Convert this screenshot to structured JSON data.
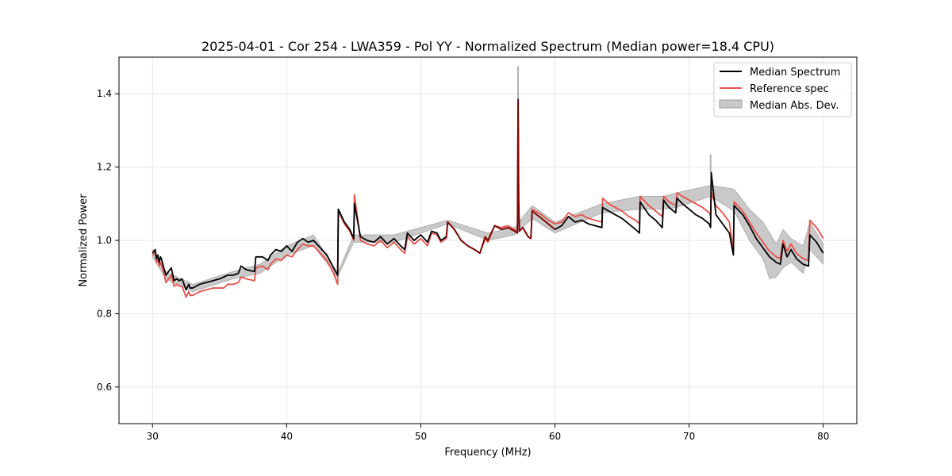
{
  "chart_data": {
    "type": "line",
    "title": "2025-04-01 - Cor 254 - LWA359 - Pol YY - Normalized Spectrum (Median power=18.4 CPU)",
    "xlabel": "Frequency (MHz)",
    "ylabel": "Normalized Power",
    "xlim": [
      27.5,
      82.5
    ],
    "ylim": [
      0.5,
      1.5
    ],
    "xticks": [
      30,
      40,
      50,
      60,
      70,
      80
    ],
    "yticks": [
      0.6,
      0.8,
      1.0,
      1.2,
      1.4
    ],
    "xtick_labels": [
      "30",
      "40",
      "50",
      "60",
      "70",
      "80"
    ],
    "ytick_labels": [
      "0.6",
      "0.8",
      "1.0",
      "1.2",
      "1.4"
    ],
    "grid": true,
    "legend_position": "top-right",
    "legend": [
      "Median Spectrum",
      "Reference spec",
      "Median Abs. Dev."
    ],
    "colors": {
      "median": "#000000",
      "reference": "#e8504a",
      "mad": "#bfbfbf"
    },
    "series": [
      {
        "name": "Median Spectrum",
        "x": [
          30.0,
          30.2,
          30.3,
          30.4,
          30.5,
          30.6,
          30.7,
          30.8,
          31.0,
          31.2,
          31.4,
          31.6,
          31.8,
          32.0,
          32.2,
          32.5,
          32.7,
          32.8,
          33.0,
          33.5,
          34.0,
          34.5,
          35.0,
          35.3,
          35.6,
          36.0,
          36.4,
          36.6,
          37.0,
          37.6,
          37.7,
          38.2,
          38.6,
          38.8,
          39.2,
          39.6,
          40.0,
          40.4,
          40.8,
          41.2,
          41.6,
          42.0,
          42.5,
          43.0,
          43.5,
          43.8,
          43.85,
          44.3,
          44.7,
          45.0,
          45.05,
          45.5,
          46.0,
          46.5,
          47.0,
          47.5,
          48.0,
          48.5,
          48.8,
          49.0,
          49.5,
          50.0,
          50.5,
          50.8,
          51.2,
          51.5,
          51.9,
          52.0,
          52.5,
          53.0,
          53.5,
          54.0,
          54.4,
          54.8,
          55.0,
          55.5,
          56.0,
          56.5,
          57.0,
          57.2,
          57.25,
          57.3,
          57.35,
          57.6,
          58.0,
          58.2,
          58.3,
          59.0,
          59.5,
          60.0,
          60.5,
          61.0,
          61.5,
          62.0,
          62.5,
          63.0,
          63.5,
          63.55,
          64.0,
          64.5,
          65.0,
          65.5,
          66.0,
          66.3,
          66.35,
          67.0,
          67.5,
          68.0,
          68.1,
          68.5,
          69.0,
          69.1,
          69.5,
          70.0,
          70.5,
          71.0,
          71.5,
          71.6,
          71.65,
          72.0,
          72.5,
          73.0,
          73.3,
          73.35,
          74.0,
          74.5,
          75.0,
          75.5,
          76.0,
          76.5,
          76.8,
          77.0,
          77.3,
          77.6,
          78.0,
          78.5,
          78.9,
          79.0,
          79.5,
          80.0
        ],
        "values": [
          0.965,
          0.975,
          0.95,
          0.96,
          0.94,
          0.955,
          0.945,
          0.93,
          0.905,
          0.915,
          0.925,
          0.89,
          0.895,
          0.89,
          0.895,
          0.865,
          0.88,
          0.87,
          0.87,
          0.88,
          0.885,
          0.89,
          0.895,
          0.9,
          0.905,
          0.905,
          0.91,
          0.93,
          0.92,
          0.915,
          0.955,
          0.955,
          0.945,
          0.96,
          0.975,
          0.97,
          0.985,
          0.97,
          0.995,
          1.005,
          0.995,
          1.0,
          0.98,
          0.96,
          0.925,
          0.905,
          1.085,
          1.05,
          1.03,
          1.005,
          1.1,
          1.01,
          1.0,
          0.995,
          1.01,
          0.99,
          1.005,
          0.985,
          0.975,
          1.02,
          1.0,
          1.015,
          0.995,
          1.025,
          1.02,
          1.0,
          1.01,
          1.05,
          1.03,
          1.0,
          0.985,
          0.975,
          0.965,
          1.01,
          1.0,
          1.04,
          1.03,
          1.035,
          1.025,
          1.02,
          1.385,
          1.1,
          1.025,
          1.035,
          1.01,
          1.005,
          1.08,
          1.06,
          1.045,
          1.03,
          1.04,
          1.065,
          1.05,
          1.055,
          1.045,
          1.04,
          1.035,
          1.09,
          1.08,
          1.07,
          1.06,
          1.045,
          1.03,
          1.02,
          1.105,
          1.07,
          1.055,
          1.035,
          1.11,
          1.09,
          1.075,
          1.115,
          1.1,
          1.085,
          1.07,
          1.06,
          1.045,
          1.035,
          1.185,
          1.07,
          1.045,
          1.02,
          0.96,
          1.095,
          1.07,
          1.04,
          1.005,
          0.98,
          0.955,
          0.94,
          0.935,
          0.99,
          0.955,
          0.975,
          0.95,
          0.935,
          0.93,
          1.015,
          0.995,
          0.965
        ]
      },
      {
        "name": "Reference spec",
        "x": [
          30.0,
          30.2,
          30.3,
          30.4,
          30.5,
          30.6,
          30.7,
          30.8,
          31.0,
          31.2,
          31.4,
          31.6,
          31.8,
          32.0,
          32.2,
          32.5,
          32.7,
          32.8,
          33.0,
          33.5,
          34.0,
          34.5,
          35.0,
          35.3,
          35.6,
          36.0,
          36.4,
          36.6,
          37.0,
          37.6,
          37.7,
          38.2,
          38.6,
          38.8,
          39.2,
          39.6,
          40.0,
          40.4,
          40.8,
          41.2,
          41.6,
          42.0,
          42.5,
          43.0,
          43.5,
          43.8,
          43.85,
          44.3,
          44.7,
          45.0,
          45.05,
          45.5,
          46.0,
          46.5,
          47.0,
          47.5,
          48.0,
          48.5,
          48.8,
          49.0,
          49.5,
          50.0,
          50.5,
          50.8,
          51.2,
          51.5,
          51.9,
          52.0,
          52.5,
          53.0,
          53.5,
          54.0,
          54.4,
          54.8,
          55.0,
          55.5,
          56.0,
          56.5,
          57.0,
          57.2,
          57.25,
          57.3,
          57.35,
          57.6,
          58.0,
          58.2,
          58.3,
          59.0,
          59.5,
          60.0,
          60.5,
          61.0,
          61.5,
          62.0,
          62.5,
          63.0,
          63.5,
          63.55,
          64.0,
          64.5,
          65.0,
          65.5,
          66.0,
          66.3,
          66.35,
          67.0,
          67.5,
          68.0,
          68.1,
          68.5,
          69.0,
          69.1,
          69.5,
          70.0,
          70.5,
          71.0,
          71.5,
          71.6,
          71.65,
          72.0,
          72.5,
          73.0,
          73.3,
          73.35,
          74.0,
          74.5,
          75.0,
          75.5,
          76.0,
          76.5,
          76.8,
          77.0,
          77.3,
          77.6,
          78.0,
          78.5,
          78.9,
          79.0,
          79.5,
          80.0
        ],
        "values": [
          0.96,
          0.965,
          0.94,
          0.95,
          0.93,
          0.94,
          0.93,
          0.915,
          0.885,
          0.895,
          0.905,
          0.875,
          0.88,
          0.875,
          0.875,
          0.845,
          0.86,
          0.85,
          0.85,
          0.86,
          0.865,
          0.87,
          0.87,
          0.87,
          0.88,
          0.88,
          0.885,
          0.9,
          0.895,
          0.89,
          0.925,
          0.93,
          0.92,
          0.935,
          0.95,
          0.945,
          0.96,
          0.955,
          0.975,
          0.99,
          0.985,
          0.985,
          0.965,
          0.945,
          0.91,
          0.88,
          1.08,
          1.045,
          1.025,
          1.0,
          1.125,
          1.0,
          0.99,
          0.985,
          1.0,
          0.98,
          0.995,
          0.975,
          0.965,
          1.01,
          0.99,
          1.005,
          0.985,
          1.02,
          1.015,
          0.995,
          1.005,
          1.05,
          1.03,
          1.0,
          0.985,
          0.975,
          0.965,
          1.005,
          0.995,
          1.04,
          1.035,
          1.04,
          1.03,
          1.02,
          1.1,
          1.08,
          1.025,
          1.035,
          1.01,
          1.005,
          1.085,
          1.07,
          1.055,
          1.045,
          1.05,
          1.075,
          1.065,
          1.07,
          1.06,
          1.055,
          1.05,
          1.115,
          1.1,
          1.09,
          1.08,
          1.065,
          1.055,
          1.045,
          1.12,
          1.095,
          1.08,
          1.065,
          1.12,
          1.105,
          1.095,
          1.13,
          1.12,
          1.11,
          1.1,
          1.09,
          1.075,
          1.065,
          1.13,
          1.095,
          1.075,
          1.05,
          0.97,
          1.105,
          1.08,
          1.05,
          1.02,
          0.995,
          0.97,
          0.955,
          0.95,
          1.0,
          0.97,
          0.99,
          0.965,
          0.95,
          0.945,
          1.055,
          1.035,
          1.005
        ]
      },
      {
        "name": "Median Abs. Dev.",
        "kind": "band",
        "x": [
          30.0,
          31.0,
          33.0,
          36.0,
          38.0,
          40.0,
          42.0,
          43.8,
          45.0,
          48.0,
          52.0,
          55.0,
          57.0,
          58.3,
          60.0,
          63.5,
          66.3,
          68.1,
          69.1,
          71.6,
          73.35,
          74.5,
          75.5,
          76.0,
          76.5,
          77.0,
          77.6,
          78.5,
          79.0,
          80.0
        ],
        "lower": [
          0.955,
          0.895,
          0.86,
          0.895,
          0.91,
          0.96,
          0.985,
          0.9,
          0.995,
          0.995,
          1.045,
          1.0,
          1.015,
          1.06,
          1.02,
          1.075,
          1.085,
          1.085,
          1.09,
          1.12,
          1.08,
          1.0,
          0.95,
          0.895,
          0.9,
          0.925,
          0.94,
          0.91,
          0.975,
          0.935
        ],
        "upper": [
          0.975,
          0.915,
          0.88,
          0.915,
          0.935,
          0.985,
          1.015,
          0.91,
          1.015,
          1.015,
          1.055,
          1.02,
          1.035,
          1.095,
          1.05,
          1.1,
          1.12,
          1.12,
          1.13,
          1.15,
          1.14,
          1.085,
          1.05,
          1.02,
          0.99,
          1.03,
          1.005,
          0.985,
          1.05,
          0.99
        ]
      }
    ],
    "spikes": [
      {
        "x": 57.25,
        "median": 1.385,
        "mad_upper": 1.475
      },
      {
        "x": 71.6,
        "median": 1.185,
        "mad_upper": 1.235
      }
    ]
  }
}
